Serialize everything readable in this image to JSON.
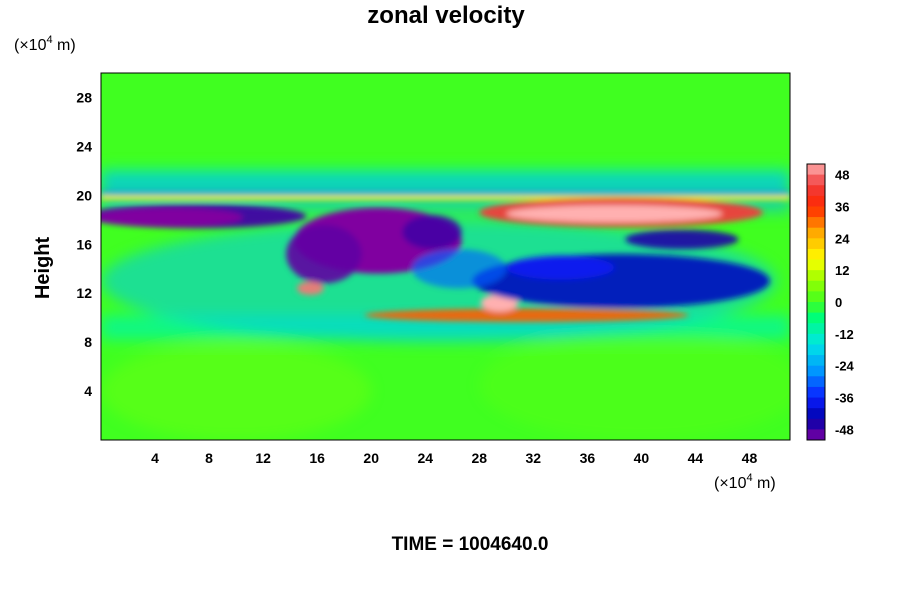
{
  "chart_data": {
    "type": "heatmap",
    "title": "zonal velocity",
    "ylabel": "Height",
    "xlabel": "",
    "x_unit": {
      "prefix": "(×10",
      "exp": "4",
      "suffix": " m)"
    },
    "y_unit": {
      "prefix": "(×10",
      "exp": "4",
      "suffix": " m)"
    },
    "xlim": [
      0,
      51
    ],
    "ylim": [
      0,
      30
    ],
    "x_ticks": [
      4,
      8,
      12,
      16,
      20,
      24,
      28,
      32,
      36,
      40,
      44,
      48
    ],
    "y_ticks": [
      4,
      8,
      12,
      16,
      20,
      24,
      28
    ],
    "colorbar": {
      "ticks": [
        48,
        36,
        24,
        12,
        0,
        -12,
        -24,
        -36,
        -48
      ],
      "range": [
        -52,
        52
      ],
      "levels": 26
    },
    "annotation": "TIME = 1004640.0",
    "features": [
      {
        "name": "strong-westward-core-west",
        "x": [
          0,
          13
        ],
        "y": [
          17,
          19.5
        ],
        "value": -55
      },
      {
        "name": "strong-westward-core-central",
        "x": [
          14,
          25
        ],
        "y": [
          13,
          18.5
        ],
        "value": -55
      },
      {
        "name": "westward-band-east",
        "x": [
          26,
          51
        ],
        "y": [
          10,
          16
        ],
        "value": -40
      },
      {
        "name": "strong-eastward-jet-upper",
        "x": [
          30,
          48
        ],
        "y": [
          17.5,
          19.5
        ],
        "value": 50
      },
      {
        "name": "eastward-band-lower",
        "x": [
          20,
          44
        ],
        "y": [
          9.5,
          10.8
        ],
        "value": 30
      },
      {
        "name": "eastward-spot",
        "x": [
          28,
          31
        ],
        "y": [
          10.5,
          11.8
        ],
        "value": 45
      }
    ]
  },
  "colors": {
    "background_field": "#40ff20",
    "max": "#ffb0b0",
    "min": "#8000a0"
  }
}
